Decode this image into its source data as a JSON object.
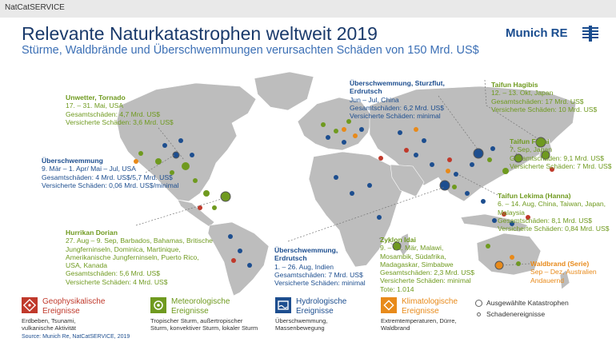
{
  "header": {
    "brand": "NatCatSERVICE"
  },
  "title": "Relevante Naturkatastrophen weltweit 2019",
  "subtitle": "Stürme, Waldbrände und Überschwemmungen verursachten Schäden von 150 Mrd. US$",
  "logo": {
    "text": "Munich RE",
    "icon": "munich-re-logo-icon"
  },
  "colors": {
    "geophysical": "#c0392b",
    "meteorological": "#6f9a1f",
    "hydrological": "#1d4e8f",
    "climatological": "#e88a1a",
    "land": "#bdbdbd"
  },
  "annotations": {
    "tornado": {
      "title": "Unwetter, Tornado",
      "lines": [
        "17. – 31. Mai, USA",
        "Gesamtschäden: 4,7 Mrd. US$",
        "Versicherte Schäden: 3,6 Mrd. US$"
      ]
    },
    "flood_us": {
      "title": "Überschwemmung",
      "lines": [
        "9. Mär – 1. Apr/ Mai – Jul, USA",
        "Gesamtschäden: 4 Mrd. US$/5,7 Mrd. US$",
        "Versicherte Schäden: 0,06 Mrd. US$/minimal"
      ]
    },
    "dorian": {
      "title": "Hurrikan Dorian",
      "lines": [
        "27. Aug – 9. Sep, Barbados, Bahamas, Britische",
        "Jungferninseln, Dominica, Martinique,",
        "Amerikanische Jungferninseln, Puerto Rico,",
        "USA, Kanada",
        "Gesamtschäden: 5,6 Mrd. US$",
        "Versicherte Schäden: 4 Mrd. US$"
      ]
    },
    "china_flood": {
      "title": "Überschwemmung, Sturzflut,",
      "title2": "Erdrutsch",
      "lines": [
        "Jun – Jul, China",
        "Gesamtschäden: 6,2 Mrd. US$",
        "Versicherte Schäden: minimal"
      ]
    },
    "hagibis": {
      "title": "Taifun Hagibis",
      "lines": [
        "12. – 13. Okt, Japan",
        "Gesamtschäden: 17 Mrd. US$",
        "Versicherte Schäden: 10 Mrd. US$"
      ]
    },
    "faxai": {
      "title": "Taifun Faxai",
      "lines": [
        "7. Sep, Japan",
        "Gesamtschäden: 9,1 Mrd. US$",
        "Versicherte Schäden: 7 Mrd. US$"
      ]
    },
    "lekima": {
      "title": "Taifun Lekima (Hanna)",
      "lines": [
        "6. – 14. Aug, China, Taiwan, Japan,",
        "Malaysia",
        "Gesamtschäden: 8,1 Mrd. US$",
        "Versicherte Schäden: 0,84 Mrd. US$"
      ]
    },
    "india": {
      "title": "Überschwemmung,",
      "title2": "Erdrutsch",
      "lines": [
        "1. – 26. Aug, Indien",
        "Gesamtschäden: 7 Mrd. US$",
        "Versicherte Schäden: minimal"
      ]
    },
    "idai": {
      "title": "Zyklon Idai",
      "lines": [
        "9. – 14. Mär, Malawi,",
        "Mosambik, Südafrika,",
        "Madagaskar, Simbabwe",
        "Gesamtschäden: 2,3 Mrd. US$",
        "Versicherte Schäden: minimal",
        "Tote: 1.014"
      ]
    },
    "wildfire": {
      "title": "Waldbrand (Serie)",
      "lines": [
        "Sep – Dez, Australien",
        "Andauernd"
      ]
    }
  },
  "legend": {
    "geophysical": {
      "title": [
        "Geophysikalische",
        "Ereignisse"
      ],
      "sub": [
        "Erdbeben, Tsunami,",
        "vulkanische Aktivität"
      ],
      "icon": "geophysical-icon"
    },
    "meteorological": {
      "title": [
        "Meteorologische",
        "Ereignisse"
      ],
      "sub": [
        "Tropischer Sturm, außertropischer",
        "Sturm, konvektiver Sturm, lokaler Sturm"
      ],
      "icon": "meteorological-icon"
    },
    "hydrological": {
      "title": [
        "Hydrologische",
        "Ereignisse"
      ],
      "sub": [
        "Überschwemmung,",
        "Massenbewegung"
      ],
      "icon": "hydrological-icon"
    },
    "climatological": {
      "title": [
        "Klimatologische",
        "Ereignisse"
      ],
      "sub": [
        "Extremtemperaturen, Dürre,",
        "Waldbrand"
      ],
      "icon": "climatological-icon"
    },
    "selected": "Ausgewählte Katastrophen",
    "events": "Schadenereignisse"
  },
  "source": "Source: Munich Re, NatCatSERVICE, 2019"
}
